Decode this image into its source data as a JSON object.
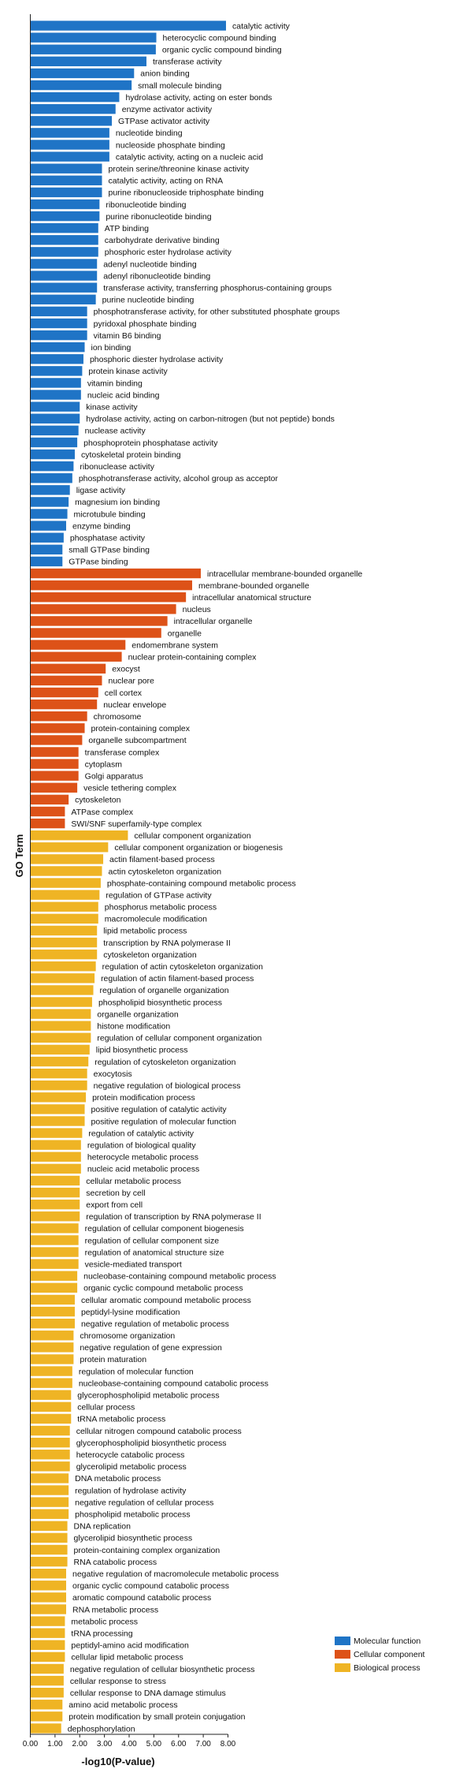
{
  "chart_data": {
    "type": "bar",
    "orientation": "horizontal",
    "title": "",
    "xlabel": "-log10(P-value)",
    "ylabel": "GO Term",
    "xlim": [
      0,
      8
    ],
    "xticks": [
      "0.00",
      "1.00",
      "2.00",
      "3.00",
      "4.00",
      "5.00",
      "6.00",
      "7.00",
      "8.00"
    ],
    "grid": false,
    "legend_position": "bottom-right",
    "series": [
      {
        "name": "Molecular function",
        "color": "#1f74c6",
        "categories": [
          "catalytic activity",
          "heterocyclic compound binding",
          "organic cyclic compound binding",
          "transferase activity",
          "anion binding",
          "small molecule binding",
          "hydrolase activity, acting on ester bonds",
          "enzyme activator activity",
          "GTPase activator activity",
          "nucleotide binding",
          "nucleoside phosphate binding",
          "catalytic activity, acting on a nucleic acid",
          "protein serine/threonine kinase activity",
          "catalytic activity, acting on RNA",
          "purine ribonucleoside triphosphate binding",
          "ribonucleotide binding",
          "purine ribonucleotide binding",
          "ATP binding",
          "carbohydrate derivative binding",
          "phosphoric ester hydrolase activity",
          "adenyl nucleotide binding",
          "adenyl ribonucleotide binding",
          "transferase activity, transferring phosphorus-containing groups",
          "purine nucleotide binding",
          "phosphotransferase activity, for other substituted phosphate groups",
          "pyridoxal phosphate binding",
          "vitamin B6 binding",
          "ion binding",
          "phosphoric diester hydrolase activity",
          "protein kinase activity",
          "vitamin binding",
          "nucleic acid binding",
          "kinase activity",
          "hydrolase activity, acting on carbon-nitrogen (but not peptide) bonds",
          "nuclease activity",
          "phosphoprotein phosphatase activity",
          "cytoskeletal protein binding",
          "ribonuclease activity",
          "phosphotransferase activity, alcohol group as acceptor",
          "ligase activity",
          "magnesium ion binding",
          "microtubule binding",
          "enzyme binding",
          "phosphatase activity",
          "small GTPase binding",
          "GTPase binding"
        ],
        "values": [
          7.92,
          5.1,
          5.08,
          4.7,
          4.2,
          4.1,
          3.6,
          3.45,
          3.3,
          3.2,
          3.2,
          3.2,
          2.9,
          2.9,
          2.9,
          2.8,
          2.8,
          2.75,
          2.75,
          2.75,
          2.7,
          2.7,
          2.7,
          2.65,
          2.3,
          2.3,
          2.3,
          2.2,
          2.15,
          2.1,
          2.05,
          2.05,
          2.0,
          2.0,
          1.95,
          1.9,
          1.8,
          1.75,
          1.7,
          1.6,
          1.55,
          1.5,
          1.45,
          1.35,
          1.3,
          1.3
        ]
      },
      {
        "name": "Cellular component",
        "color": "#dd5218",
        "categories": [
          "intracellular membrane-bounded organelle",
          "membrane-bounded organelle",
          "intracellular anatomical structure",
          "nucleus",
          "intracellular organelle",
          "organelle",
          "endomembrane system",
          "nuclear protein-containing complex",
          "exocyst",
          "nuclear pore",
          "cell cortex",
          "nuclear envelope",
          "chromosome",
          "protein-containing complex",
          "organelle subcompartment",
          "transferase complex",
          "cytoplasm",
          "Golgi apparatus",
          "vesicle tethering complex",
          "cytoskeleton",
          "ATPase complex",
          "SWI/SNF superfamily-type complex"
        ],
        "values": [
          6.9,
          6.55,
          6.3,
          5.9,
          5.55,
          5.3,
          3.85,
          3.7,
          3.05,
          2.9,
          2.75,
          2.7,
          2.3,
          2.2,
          2.1,
          1.95,
          1.95,
          1.95,
          1.9,
          1.55,
          1.4,
          1.4
        ]
      },
      {
        "name": "Biological process",
        "color": "#efb424",
        "categories": [
          "cellular component organization",
          "cellular component organization or biogenesis",
          "actin filament-based process",
          "actin cytoskeleton organization",
          "phosphate-containing compound metabolic process",
          "regulation of GTPase activity",
          "phosphorus metabolic process",
          "macromolecule modification",
          "lipid metabolic process",
          "transcription by RNA polymerase II",
          "cytoskeleton organization",
          "regulation of actin cytoskeleton organization",
          "regulation of actin filament-based process",
          "regulation of organelle organization",
          "phospholipid biosynthetic process",
          "organelle organization",
          "histone modification",
          "regulation of cellular component organization",
          "lipid biosynthetic process",
          "regulation of cytoskeleton organization",
          "exocytosis",
          "negative regulation of biological process",
          "protein modification process",
          "positive regulation of catalytic activity",
          "positive regulation of molecular function",
          "regulation of catalytic activity",
          "regulation of biological quality",
          "heterocycle metabolic process",
          "nucleic acid metabolic process",
          "cellular metabolic process",
          "secretion by cell",
          "export from cell",
          "regulation of transcription by RNA polymerase II",
          "regulation of cellular component biogenesis",
          "regulation of cellular component size",
          "regulation of anatomical structure size",
          "vesicle-mediated transport",
          "nucleobase-containing compound metabolic process",
          "organic cyclic compound metabolic process",
          "cellular aromatic compound metabolic process",
          "peptidyl-lysine modification",
          "negative regulation of metabolic process",
          "chromosome organization",
          "negative regulation of gene expression",
          "protein maturation",
          "regulation of molecular function",
          "nucleobase-containing compound catabolic process",
          "glycerophospholipid metabolic process",
          "cellular process",
          "tRNA metabolic process",
          "cellular nitrogen compound catabolic process",
          "glycerophospholipid biosynthetic process",
          "heterocycle catabolic process",
          "glycerolipid metabolic process",
          "DNA metabolic process",
          "regulation of hydrolase activity",
          "negative regulation of cellular process",
          "phospholipid metabolic process",
          "DNA replication",
          "glycerolipid biosynthetic process",
          "protein-containing complex organization",
          "RNA catabolic process",
          "negative regulation of macromolecule metabolic process",
          "organic cyclic compound catabolic process",
          "aromatic compound catabolic process",
          "RNA metabolic process",
          "metabolic process",
          "tRNA processing",
          "peptidyl-amino acid modification",
          "cellular lipid metabolic process",
          "negative regulation of cellular biosynthetic process",
          "cellular response to stress",
          "cellular response to DNA damage stimulus",
          "amino acid metabolic process",
          "protein modification by small protein conjugation",
          "dephosphorylation"
        ],
        "values": [
          3.95,
          3.15,
          2.95,
          2.9,
          2.85,
          2.8,
          2.75,
          2.75,
          2.7,
          2.7,
          2.7,
          2.65,
          2.6,
          2.55,
          2.5,
          2.45,
          2.45,
          2.45,
          2.4,
          2.35,
          2.3,
          2.3,
          2.25,
          2.2,
          2.2,
          2.1,
          2.05,
          2.05,
          2.05,
          2.0,
          2.0,
          2.0,
          2.0,
          1.95,
          1.95,
          1.95,
          1.95,
          1.9,
          1.9,
          1.8,
          1.8,
          1.8,
          1.75,
          1.75,
          1.75,
          1.7,
          1.7,
          1.65,
          1.65,
          1.65,
          1.6,
          1.6,
          1.6,
          1.6,
          1.55,
          1.55,
          1.55,
          1.55,
          1.5,
          1.5,
          1.5,
          1.5,
          1.45,
          1.45,
          1.45,
          1.45,
          1.4,
          1.4,
          1.4,
          1.4,
          1.35,
          1.35,
          1.35,
          1.3,
          1.3,
          1.25
        ]
      }
    ]
  }
}
